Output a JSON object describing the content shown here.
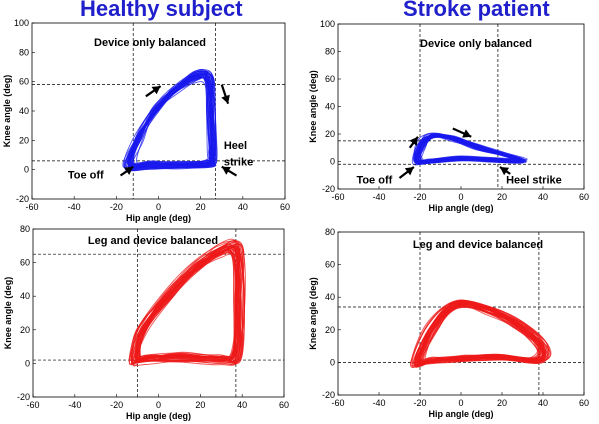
{
  "headers": {
    "left": "Healthy subject",
    "right": "Stroke patient"
  },
  "colors": {
    "blue": "#1a1aee",
    "red": "#ee1a1a",
    "header": "#1f1fcc"
  },
  "chart_data": [
    {
      "id": "healthy-device",
      "type": "line",
      "title": "Device only balanced",
      "xlabel": "Hip angle (deg)",
      "ylabel": "Knee angle (deg)",
      "xlim": [
        -60,
        60
      ],
      "ylim": [
        -20,
        100
      ],
      "xticks": [
        "-60",
        "-40",
        "-20",
        "0",
        "20",
        "40",
        "60"
      ],
      "yticks": [
        "-20",
        "0",
        "20",
        "40",
        "60",
        "80",
        "100"
      ],
      "color": "#1a1aee",
      "loop": [
        [
          -14,
          3
        ],
        [
          -10,
          20
        ],
        [
          -2,
          40
        ],
        [
          8,
          55
        ],
        [
          18,
          64
        ],
        [
          24,
          62
        ],
        [
          25,
          40
        ],
        [
          26,
          10
        ],
        [
          24,
          4
        ],
        [
          10,
          3
        ],
        [
          -4,
          3
        ]
      ],
      "hlines": [
        6,
        58
      ],
      "vlines": [
        -12,
        27
      ],
      "arrows": [
        {
          "from": [
            1,
            57
          ],
          "to": [
            -6,
            50
          ],
          "tip": [
            1,
            57
          ]
        },
        {
          "from": [
            30,
            58
          ],
          "to": [
            33,
            45
          ],
          "tip": [
            33,
            45
          ]
        },
        {
          "from": [
            -18,
            -4
          ],
          "to": [
            -12,
            2
          ],
          "tip": [
            -12,
            2
          ]
        },
        {
          "from": [
            37,
            -4
          ],
          "to": [
            30,
            2
          ],
          "tip": [
            30,
            2
          ]
        }
      ],
      "annotations": [
        {
          "text": "Toe off",
          "x": -43,
          "y": -6
        },
        {
          "text": "Heel",
          "x": 31,
          "y": 14
        },
        {
          "text": "strike",
          "x": 31,
          "y": 3
        }
      ]
    },
    {
      "id": "stroke-device",
      "type": "line",
      "title": "Device only balanced",
      "xlabel": "Hip angle (deg)",
      "ylabel": "Knee angle (deg)",
      "xlim": [
        -60,
        60
      ],
      "ylim": [
        -20,
        100
      ],
      "xticks": [
        "-60",
        "-40",
        "-20",
        "0",
        "20",
        "40",
        "60"
      ],
      "yticks": [
        "-20",
        "0",
        "20",
        "40",
        "60",
        "80",
        "100"
      ],
      "color": "#1a1aee",
      "loop": [
        [
          -22,
          0
        ],
        [
          -20,
          12
        ],
        [
          -14,
          19
        ],
        [
          -4,
          17
        ],
        [
          10,
          10
        ],
        [
          30,
          1
        ],
        [
          15,
          1
        ],
        [
          0,
          2
        ],
        [
          -15,
          0
        ]
      ],
      "hlines": [
        -2,
        15
      ],
      "vlines": [
        -20,
        18
      ],
      "arrows": [
        {
          "from": [
            -25,
            10
          ],
          "to": [
            -21,
            18
          ],
          "tip": [
            -21,
            18
          ]
        },
        {
          "from": [
            -4,
            24
          ],
          "to": [
            5,
            18
          ],
          "tip": [
            5,
            18
          ]
        },
        {
          "from": [
            -30,
            -12
          ],
          "to": [
            -23,
            -4
          ],
          "tip": [
            -23,
            -4
          ]
        },
        {
          "from": [
            24,
            -9
          ],
          "to": [
            19,
            -4
          ],
          "tip": [
            19,
            -4
          ]
        }
      ],
      "annotations": [
        {
          "text": "Toe off",
          "x": -51,
          "y": -16
        },
        {
          "text": "Heel strike",
          "x": 22,
          "y": -16
        }
      ]
    },
    {
      "id": "healthy-leg",
      "type": "line",
      "title": "Leg and device balanced",
      "xlabel": "Hip angle (deg)",
      "ylabel": "Knee angle (deg)",
      "xlim": [
        -60,
        60
      ],
      "ylim": [
        -20,
        80
      ],
      "xticks": [
        "-60",
        "-40",
        "-20",
        "0",
        "20",
        "40",
        "60"
      ],
      "yticks": [
        "-20",
        "0",
        "20",
        "40",
        "60",
        "80"
      ],
      "color": "#ee1a1a",
      "loop": [
        [
          -12,
          2
        ],
        [
          -8,
          20
        ],
        [
          5,
          42
        ],
        [
          18,
          58
        ],
        [
          30,
          68
        ],
        [
          38,
          68
        ],
        [
          39,
          40
        ],
        [
          38,
          5
        ],
        [
          30,
          2
        ],
        [
          10,
          3
        ],
        [
          -6,
          2
        ]
      ],
      "hlines": [
        2,
        65
      ],
      "vlines": [
        -10,
        37
      ],
      "arrows": [],
      "annotations": []
    },
    {
      "id": "stroke-leg",
      "type": "line",
      "title": "Leg and device balanced",
      "xlabel": "Hip angle (deg)",
      "ylabel": "Knee angle (deg)",
      "xlim": [
        -60,
        60
      ],
      "ylim": [
        -20,
        80
      ],
      "xticks": [
        "-60",
        "-40",
        "-20",
        "0",
        "20",
        "40",
        "60"
      ],
      "yticks": [
        "-20",
        "0",
        "20",
        "40",
        "60",
        "80"
      ],
      "color": "#ee1a1a",
      "loop": [
        [
          -22,
          0
        ],
        [
          -14,
          22
        ],
        [
          -2,
          36
        ],
        [
          15,
          32
        ],
        [
          30,
          22
        ],
        [
          40,
          10
        ],
        [
          38,
          1
        ],
        [
          20,
          3
        ],
        [
          0,
          2
        ],
        [
          -15,
          1
        ]
      ],
      "hlines": [
        0,
        34
      ],
      "vlines": [
        -20,
        38
      ],
      "arrows": [],
      "annotations": []
    }
  ]
}
